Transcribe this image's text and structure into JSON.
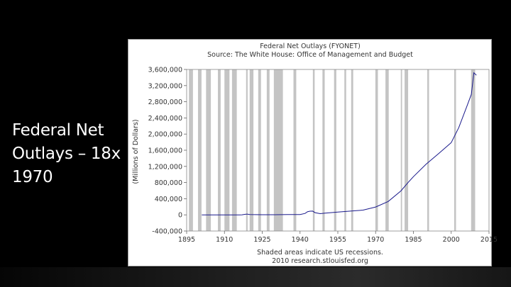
{
  "slide": {
    "title_lines": [
      "Federal Net",
      "Outlays – 18x",
      "1970"
    ]
  },
  "chart_data": {
    "type": "line",
    "title": "Federal Net Outlays (FYONET)",
    "subtitle": "Source: The White House: Office of Management and Budget",
    "ylabel": "(Millions of Dollars)",
    "footer_lines": [
      "Shaded areas indicate US recessions.",
      "2010 research.stlouisfed.org"
    ],
    "xlim": [
      1895,
      2015
    ],
    "ylim": [
      -400000,
      3600000
    ],
    "x_ticks": [
      1895,
      1910,
      1925,
      1940,
      1955,
      1970,
      1985,
      2000,
      2015
    ],
    "x_tick_labels": [
      "1895",
      "1910",
      "1925",
      "1940",
      "1955",
      "1970",
      "1985",
      "2000",
      "2015"
    ],
    "y_ticks": [
      -400000,
      0,
      400000,
      800000,
      1200000,
      1600000,
      2000000,
      2400000,
      2800000,
      3200000,
      3600000
    ],
    "y_tick_labels": [
      "-400,000",
      "0",
      "400,000",
      "800,000",
      "1,200,000",
      "1,600,000",
      "2,000,000",
      "2,400,000",
      "2,800,000",
      "3,200,000",
      "3,600,000"
    ],
    "grid": false,
    "colors": {
      "line": "#1a1a8c",
      "recession": "#c4c4c4"
    },
    "series": [
      {
        "x": [
          1901,
          1910,
          1916,
          1917,
          1918,
          1919,
          1920,
          1925,
          1930,
          1935,
          1940,
          1942,
          1943,
          1944,
          1945,
          1946,
          1948,
          1950,
          1955,
          1960,
          1965,
          1970,
          1975,
          1980,
          1983,
          1985,
          1990,
          1995,
          2000,
          2003,
          2006,
          2008,
          2009,
          2010
        ],
        "values": [
          0,
          700,
          700,
          2000,
          12700,
          18500,
          6400,
          2900,
          3300,
          6500,
          9500,
          35100,
          78600,
          91300,
          92700,
          55200,
          29800,
          42600,
          68400,
          92200,
          118200,
          195600,
          332300,
          590900,
          808400,
          946300,
          1253000,
          1515700,
          1789000,
          2159900,
          2655100,
          2982500,
          3517700,
          3456000
        ]
      }
    ],
    "recessions": [
      [
        1895.9,
        1897.5
      ],
      [
        1899.5,
        1900.9
      ],
      [
        1902.7,
        1904.6
      ],
      [
        1907.4,
        1908.5
      ],
      [
        1910.0,
        1912.0
      ],
      [
        1913.0,
        1914.9
      ],
      [
        1918.6,
        1919.2
      ],
      [
        1920.0,
        1921.5
      ],
      [
        1923.4,
        1924.5
      ],
      [
        1926.8,
        1927.9
      ],
      [
        1929.6,
        1933.2
      ],
      [
        1937.4,
        1938.5
      ],
      [
        1945.1,
        1945.8
      ],
      [
        1948.9,
        1949.8
      ],
      [
        1953.5,
        1954.4
      ],
      [
        1957.6,
        1958.3
      ],
      [
        1960.3,
        1961.1
      ],
      [
        1969.9,
        1970.9
      ],
      [
        1973.9,
        1975.2
      ],
      [
        1980.0,
        1980.5
      ],
      [
        1981.5,
        1982.9
      ],
      [
        1990.5,
        1991.2
      ],
      [
        2001.2,
        2001.9
      ],
      [
        2007.9,
        2009.5
      ]
    ]
  }
}
